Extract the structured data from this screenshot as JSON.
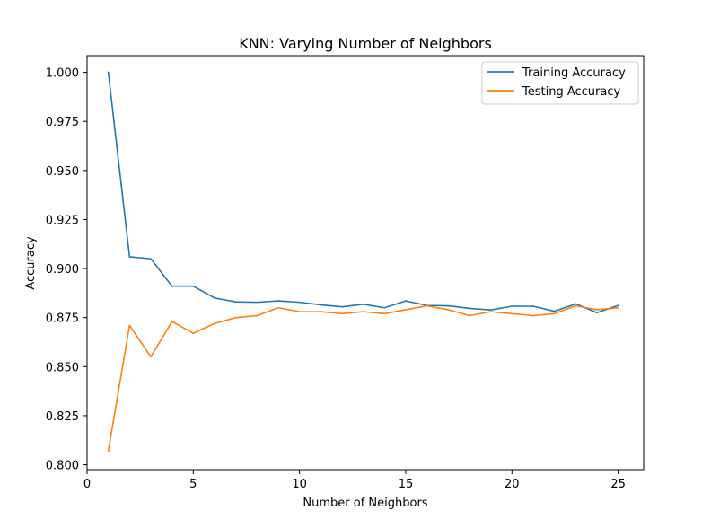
{
  "chart_data": {
    "type": "line",
    "title": "KNN: Varying Number of Neighbors",
    "xlabel": "Number of Neighbors",
    "ylabel": "Accuracy",
    "xlim": [
      0,
      26.2
    ],
    "ylim": [
      0.7975,
      1.0085
    ],
    "xticks": [
      0,
      5,
      10,
      15,
      20,
      25
    ],
    "xtick_labels": [
      "0",
      "5",
      "10",
      "15",
      "20",
      "25"
    ],
    "yticks": [
      0.8,
      0.825,
      0.85,
      0.875,
      0.9,
      0.925,
      0.95,
      0.975,
      1.0
    ],
    "ytick_labels": [
      "0.800",
      "0.825",
      "0.850",
      "0.875",
      "0.900",
      "0.925",
      "0.950",
      "0.975",
      "1.000"
    ],
    "grid": false,
    "legend_position": "upper-right",
    "x": [
      1,
      2,
      3,
      4,
      5,
      6,
      7,
      8,
      9,
      10,
      11,
      12,
      13,
      14,
      15,
      16,
      17,
      18,
      19,
      20,
      21,
      22,
      23,
      24,
      25
    ],
    "series": [
      {
        "name": "Training Accuracy",
        "color": "#1f77b4",
        "values": [
          1.0,
          0.906,
          0.905,
          0.891,
          0.891,
          0.885,
          0.883,
          0.8828,
          0.8835,
          0.8828,
          0.8815,
          0.8805,
          0.8818,
          0.88,
          0.8835,
          0.8812,
          0.881,
          0.8797,
          0.8789,
          0.8808,
          0.8808,
          0.8782,
          0.882,
          0.8775,
          0.8812
        ]
      },
      {
        "name": "Testing Accuracy",
        "color": "#ff7f0e",
        "values": [
          0.807,
          0.871,
          0.855,
          0.873,
          0.867,
          0.872,
          0.875,
          0.876,
          0.88,
          0.878,
          0.878,
          0.877,
          0.878,
          0.877,
          0.879,
          0.881,
          0.879,
          0.876,
          0.878,
          0.877,
          0.876,
          0.877,
          0.881,
          0.879,
          0.88
        ]
      }
    ]
  }
}
